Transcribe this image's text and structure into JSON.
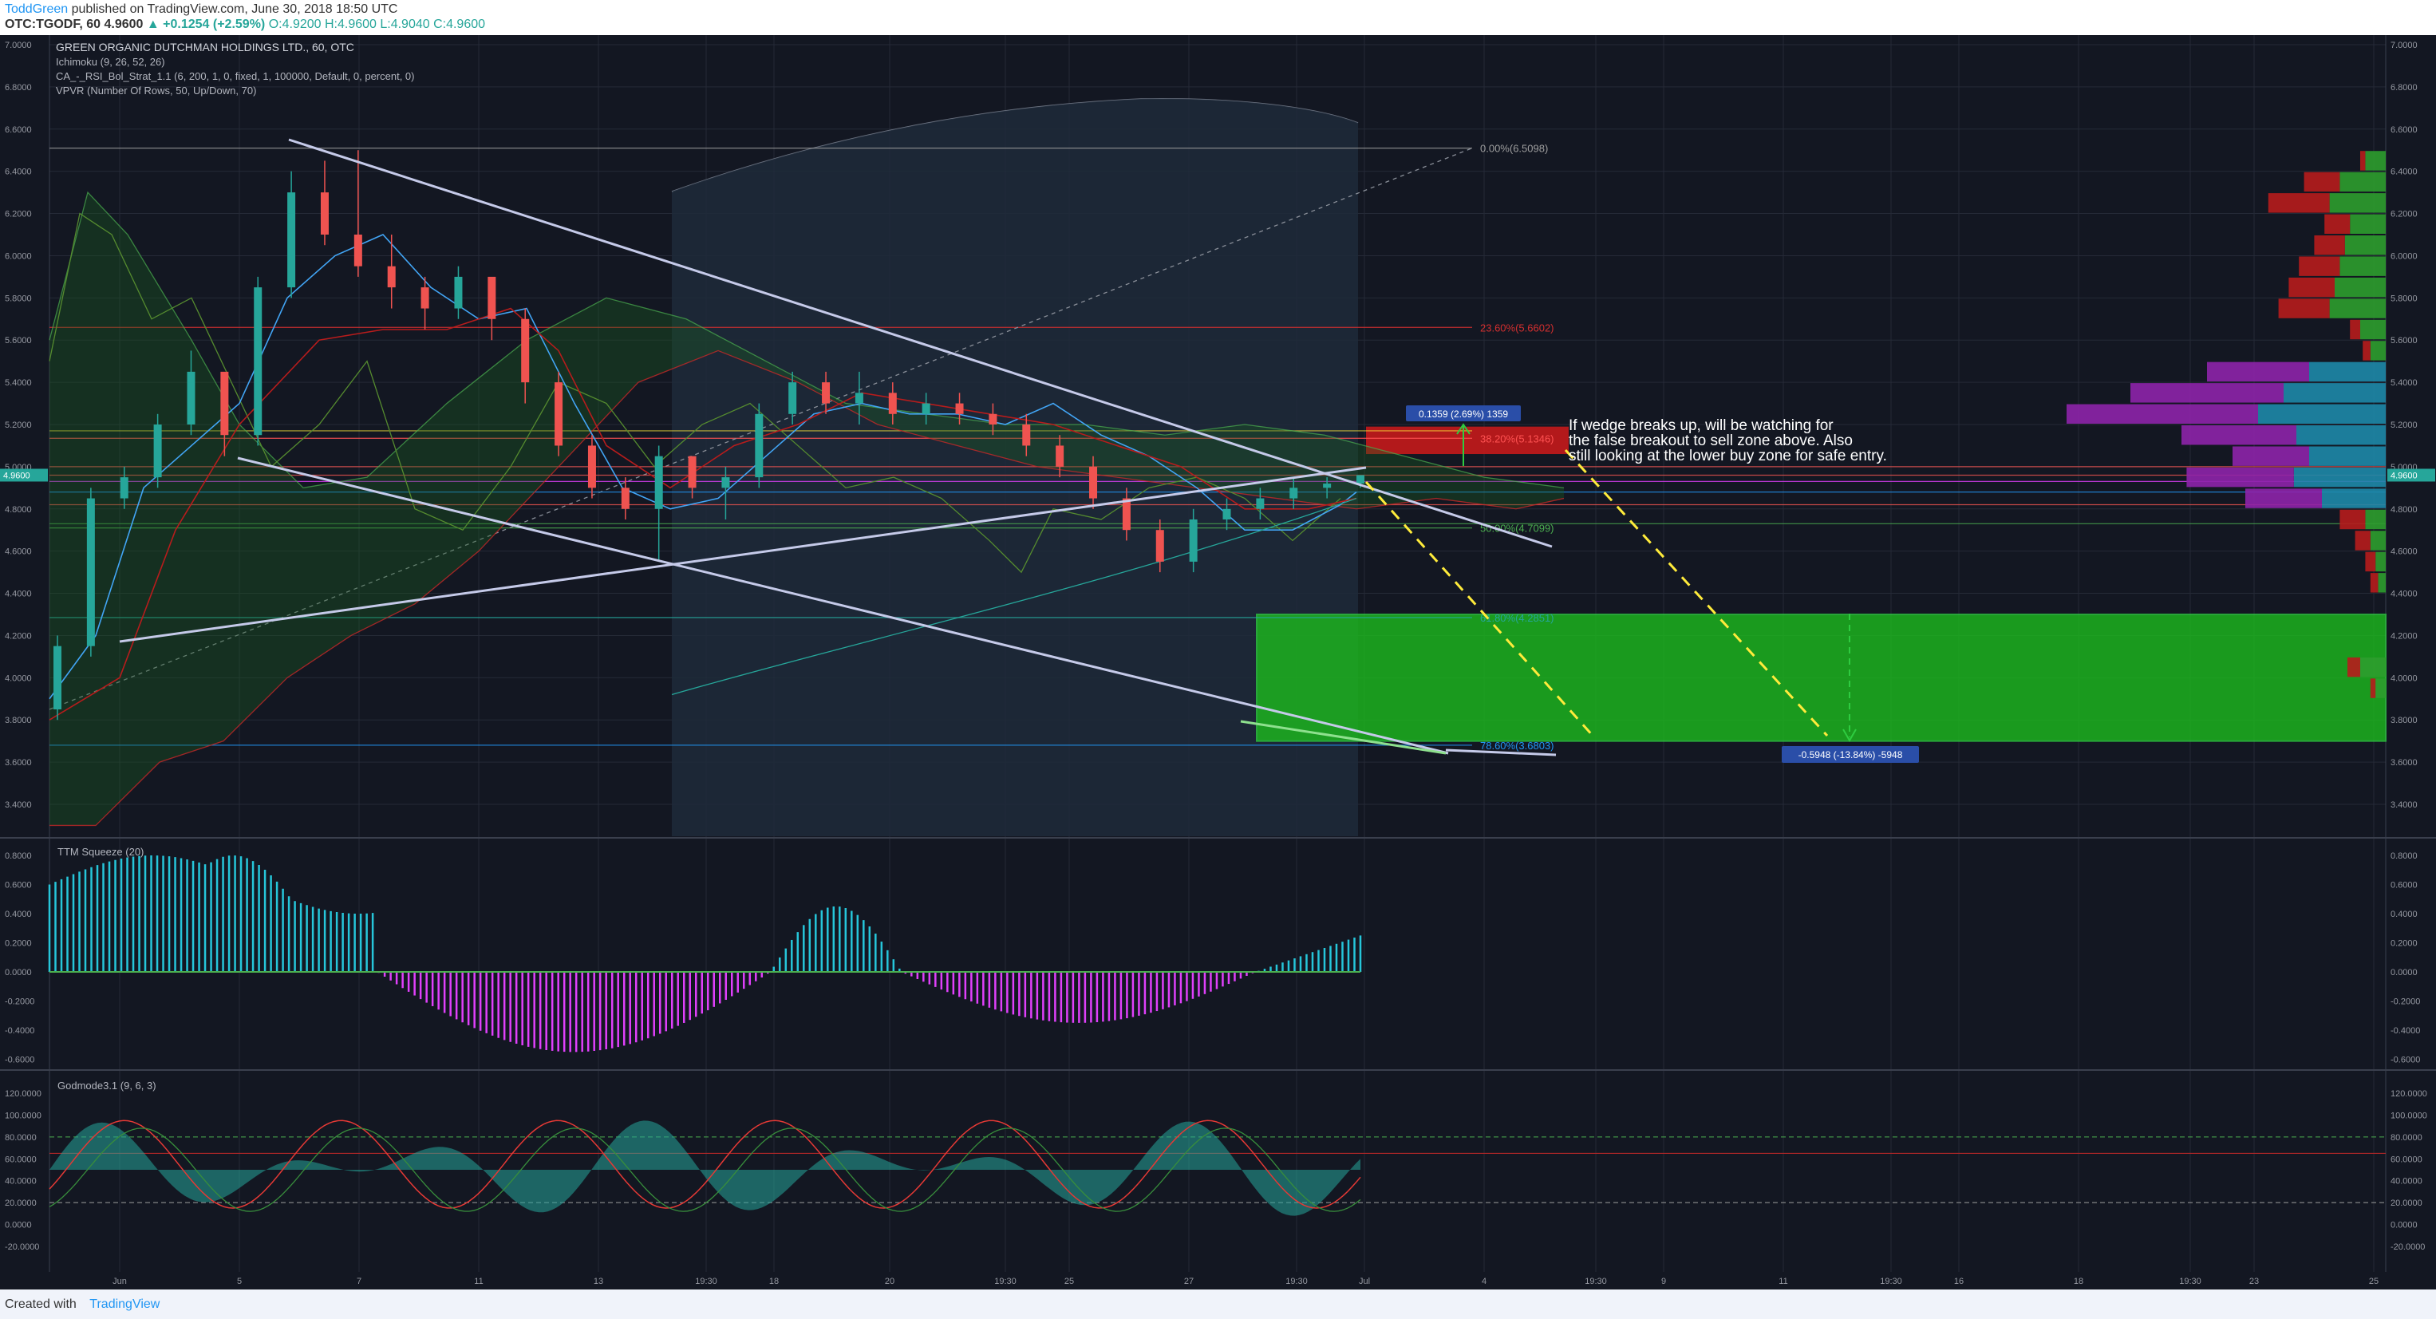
{
  "header": {
    "author": "ToddGreen",
    "published_text": "published on TradingView.com, June 30, 2018 18:50 UTC",
    "symbol": "OTC:TGODF, 60",
    "last": "4.9600",
    "change": "+0.1254 (+2.59%)",
    "ohlc": "O:4.9200 H:4.9600 L:4.9040 C:4.9600"
  },
  "footer": {
    "created_with": "Created with",
    "brand": "TradingView"
  },
  "colors": {
    "background": "#131722",
    "grid": "#252a37",
    "bull": "#26a69a",
    "bear": "#ef5350",
    "trendline": "#c5cae9",
    "buy_zone": "#1dbf1d",
    "sell_zone": "#d01a1a",
    "arrow": "#ffeb3b",
    "squeeze_pos": "#26c6da",
    "squeeze_neg": "#e040fb",
    "label_box": "#2962ff"
  },
  "legend": {
    "title": "GREEN ORGANIC DUTCHMAN HOLDINGS LTD., 60, OTC",
    "ichimoku": "Ichimoku (9, 26, 52, 26)",
    "strategy": "CA_-_RSI_Bol_Strat_1.1 (6, 200, 1, 0, fixed, 1, 100000, Default, 0, percent, 0)",
    "vpvr": "VPVR (Number Of Rows, 50, Up/Down, 70)"
  },
  "price_axis": {
    "ticks": [
      "7.0000",
      "6.8000",
      "6.6000",
      "6.4000",
      "6.2000",
      "6.0000",
      "5.8000",
      "5.6000",
      "5.4000",
      "5.2000",
      "5.0000",
      "4.8000",
      "4.6000",
      "4.4000",
      "4.2000",
      "4.0000",
      "3.8000",
      "3.6000",
      "3.4000"
    ],
    "last_price_label": "4.9600"
  },
  "fib_levels": [
    {
      "label": "0.00%(6.5098)",
      "value": 6.5098,
      "color": "#9e9e9e"
    },
    {
      "label": "23.60%(5.6602)",
      "value": 5.6602,
      "color": "#d32f2f"
    },
    {
      "label": "38.20%(5.1346)",
      "value": 5.1346,
      "color": "#ff5252"
    },
    {
      "label": "50.00%(4.7099)",
      "value": 4.7099,
      "color": "#4caf50"
    },
    {
      "label": "61.80%(4.2851)",
      "value": 4.2851,
      "color": "#26a69a"
    },
    {
      "label": "78.60%(3.6803)",
      "value": 3.6803,
      "color": "#2196f3"
    }
  ],
  "annotations": {
    "note_line1": "If wedge breaks up, will be watching for",
    "note_line2": "the false breakout to sell zone above. Also",
    "note_line3": "still looking at the lower buy zone for safe entry.",
    "up_target": "0.1359 (2.69%) 1359",
    "down_target": "-0.5948 (-13.84%) -5948"
  },
  "zones": {
    "sell_zone": {
      "low": 5.06,
      "high": 5.19
    },
    "buy_zone": {
      "low": 3.7,
      "high": 4.3
    }
  },
  "squeeze": {
    "title": "TTM Squeeze (20)",
    "ticks": [
      "0.8000",
      "0.6000",
      "0.4000",
      "0.2000",
      "0.0000",
      "-0.2000",
      "-0.4000",
      "-0.6000"
    ]
  },
  "godmode": {
    "title": "Godmode3.1 (9, 6, 3)",
    "ticks": [
      "120.0000",
      "100.0000",
      "80.0000",
      "60.0000",
      "40.0000",
      "20.0000",
      "0.0000",
      "-20.0000"
    ]
  },
  "time_axis": [
    "Jun",
    "5",
    "7",
    "11",
    "13",
    "19:30",
    "18",
    "20",
    "19:30",
    "25",
    "27",
    "19:30",
    "Jul",
    "4",
    "19:30",
    "9",
    "11",
    "19:30",
    "16",
    "18",
    "19:30",
    "23",
    "25"
  ],
  "chart_data": {
    "type": "candlestick",
    "title": "GREEN ORGANIC DUTCHMAN HOLDINGS LTD., 60, OTC",
    "x_range": [
      "2018-05-31",
      "2018-07-25"
    ],
    "ylim": [
      3.3,
      7.05
    ],
    "candles_approx": [
      [
        3.85,
        4.2,
        3.8,
        4.15
      ],
      [
        4.15,
        4.9,
        4.1,
        4.85
      ],
      [
        4.85,
        5.0,
        4.8,
        4.95
      ],
      [
        4.95,
        5.25,
        4.9,
        5.2
      ],
      [
        5.2,
        5.55,
        5.15,
        5.45
      ],
      [
        5.45,
        5.3,
        5.05,
        5.15
      ],
      [
        5.15,
        5.9,
        5.1,
        5.85
      ],
      [
        5.85,
        6.4,
        5.8,
        6.3
      ],
      [
        6.3,
        6.45,
        6.05,
        6.1
      ],
      [
        6.1,
        6.5,
        5.9,
        5.95
      ],
      [
        5.95,
        6.1,
        5.75,
        5.85
      ],
      [
        5.85,
        5.9,
        5.65,
        5.75
      ],
      [
        5.75,
        5.95,
        5.7,
        5.9
      ],
      [
        5.9,
        5.8,
        5.6,
        5.7
      ],
      [
        5.7,
        5.75,
        5.3,
        5.4
      ],
      [
        5.4,
        5.45,
        5.05,
        5.1
      ],
      [
        5.1,
        5.15,
        4.85,
        4.9
      ],
      [
        4.9,
        4.95,
        4.75,
        4.8
      ],
      [
        4.8,
        5.1,
        4.55,
        5.05
      ],
      [
        5.05,
        5.05,
        4.85,
        4.9
      ],
      [
        4.9,
        5.0,
        4.75,
        4.95
      ],
      [
        4.95,
        5.3,
        4.9,
        5.25
      ],
      [
        5.25,
        5.45,
        5.2,
        5.4
      ],
      [
        5.4,
        5.45,
        5.25,
        5.3
      ],
      [
        5.3,
        5.45,
        5.2,
        5.35
      ],
      [
        5.35,
        5.4,
        5.2,
        5.25
      ],
      [
        5.25,
        5.35,
        5.2,
        5.3
      ],
      [
        5.3,
        5.35,
        5.2,
        5.25
      ],
      [
        5.25,
        5.3,
        5.15,
        5.2
      ],
      [
        5.2,
        5.25,
        5.05,
        5.1
      ],
      [
        5.1,
        5.15,
        4.95,
        5.0
      ],
      [
        5.0,
        5.05,
        4.8,
        4.85
      ],
      [
        4.85,
        4.9,
        4.65,
        4.7
      ],
      [
        4.7,
        4.75,
        4.5,
        4.55
      ],
      [
        4.55,
        4.8,
        4.5,
        4.75
      ],
      [
        4.75,
        4.85,
        4.7,
        4.8
      ],
      [
        4.8,
        4.9,
        4.75,
        4.85
      ],
      [
        4.85,
        4.95,
        4.8,
        4.9
      ],
      [
        4.9,
        4.95,
        4.85,
        4.92
      ],
      [
        4.92,
        4.96,
        4.9,
        4.96
      ]
    ],
    "vpvr_volume_profile": [
      {
        "price": 6.45,
        "up": 8,
        "down": 2
      },
      {
        "price": 6.35,
        "up": 18,
        "down": 14
      },
      {
        "price": 6.25,
        "up": 22,
        "down": 24
      },
      {
        "price": 6.15,
        "up": 14,
        "down": 10
      },
      {
        "price": 6.05,
        "up": 16,
        "down": 12
      },
      {
        "price": 5.95,
        "up": 18,
        "down": 16
      },
      {
        "price": 5.85,
        "up": 20,
        "down": 18
      },
      {
        "price": 5.75,
        "up": 22,
        "down": 20
      },
      {
        "price": 5.65,
        "up": 10,
        "down": 4
      },
      {
        "price": 5.55,
        "up": 6,
        "down": 3
      },
      {
        "price": 5.45,
        "up": 30,
        "down": 40
      },
      {
        "price": 5.35,
        "up": 40,
        "down": 60
      },
      {
        "price": 5.25,
        "up": 50,
        "down": 75
      },
      {
        "price": 5.15,
        "up": 35,
        "down": 45
      },
      {
        "price": 5.05,
        "up": 30,
        "down": 30
      },
      {
        "price": 4.95,
        "up": 36,
        "down": 42
      },
      {
        "price": 4.85,
        "up": 25,
        "down": 30
      },
      {
        "price": 4.75,
        "up": 8,
        "down": 10
      },
      {
        "price": 4.65,
        "up": 6,
        "down": 6
      },
      {
        "price": 4.55,
        "up": 4,
        "down": 4
      },
      {
        "price": 4.45,
        "up": 3,
        "down": 3
      },
      {
        "price": 4.05,
        "up": 10,
        "down": 5
      },
      {
        "price": 3.95,
        "up": 4,
        "down": 2
      }
    ]
  }
}
